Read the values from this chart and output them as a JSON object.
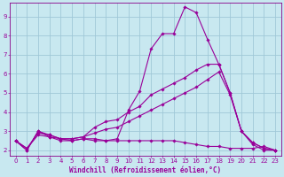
{
  "background_color": "#c8e8f0",
  "grid_color": "#a0c8d8",
  "line_color": "#990099",
  "spine_color": "#880088",
  "xlim": [
    -0.5,
    23.5
  ],
  "ylim": [
    1.7,
    9.7
  ],
  "xticks": [
    0,
    1,
    2,
    3,
    4,
    5,
    6,
    7,
    8,
    9,
    10,
    11,
    12,
    13,
    14,
    15,
    16,
    17,
    18,
    19,
    20,
    21,
    22,
    23
  ],
  "yticks": [
    2,
    3,
    4,
    5,
    6,
    7,
    8,
    9
  ],
  "xlabel": "Windchill (Refroidissement éolien,°C)",
  "line_main_x": [
    0,
    1,
    2,
    3,
    4,
    5,
    6,
    7,
    8,
    9,
    10,
    11,
    12,
    13,
    14,
    15,
    16,
    17,
    18,
    19,
    20,
    21,
    22,
    23
  ],
  "line_main_y": [
    2.5,
    2.0,
    3.0,
    2.8,
    2.6,
    2.5,
    2.6,
    2.6,
    2.5,
    2.6,
    4.1,
    5.1,
    7.3,
    8.1,
    8.1,
    9.5,
    9.2,
    7.8,
    6.5,
    5.0,
    3.0,
    2.3,
    2.0,
    2.0
  ],
  "line_flat_x": [
    0,
    1,
    2,
    3,
    4,
    5,
    6,
    7,
    8,
    9,
    10,
    11,
    12,
    13,
    14,
    15,
    16,
    17,
    18,
    19,
    20,
    21,
    22,
    23
  ],
  "line_flat_y": [
    2.5,
    2.0,
    3.0,
    2.7,
    2.5,
    2.5,
    2.6,
    2.5,
    2.5,
    2.5,
    2.5,
    2.5,
    2.5,
    2.5,
    2.5,
    2.4,
    2.3,
    2.2,
    2.2,
    2.1,
    2.1,
    2.1,
    2.2,
    2.0
  ],
  "line_diag1_x": [
    0,
    1,
    2,
    3,
    4,
    5,
    6,
    7,
    8,
    9,
    10,
    11,
    12,
    13,
    14,
    15,
    16,
    17,
    18,
    19,
    20,
    21,
    22,
    23
  ],
  "line_diag1_y": [
    2.5,
    2.1,
    2.8,
    2.7,
    2.6,
    2.6,
    2.7,
    2.9,
    3.1,
    3.2,
    3.5,
    3.8,
    4.1,
    4.4,
    4.7,
    5.0,
    5.3,
    5.7,
    6.1,
    4.9,
    3.0,
    2.4,
    2.1,
    2.0
  ],
  "line_diag2_x": [
    0,
    1,
    2,
    3,
    4,
    5,
    6,
    7,
    8,
    9,
    10,
    11,
    12,
    13,
    14,
    15,
    16,
    17,
    18,
    19,
    20,
    21,
    22,
    23
  ],
  "line_diag2_y": [
    2.5,
    2.1,
    2.9,
    2.8,
    2.6,
    2.6,
    2.7,
    3.2,
    3.5,
    3.6,
    4.0,
    4.3,
    4.9,
    5.2,
    5.5,
    5.8,
    6.2,
    6.5,
    6.5,
    5.0,
    3.0,
    2.4,
    2.1,
    2.0
  ],
  "marker_size": 1.8,
  "line_width": 0.8,
  "tick_fontsize": 5.0,
  "xlabel_fontsize": 5.5
}
